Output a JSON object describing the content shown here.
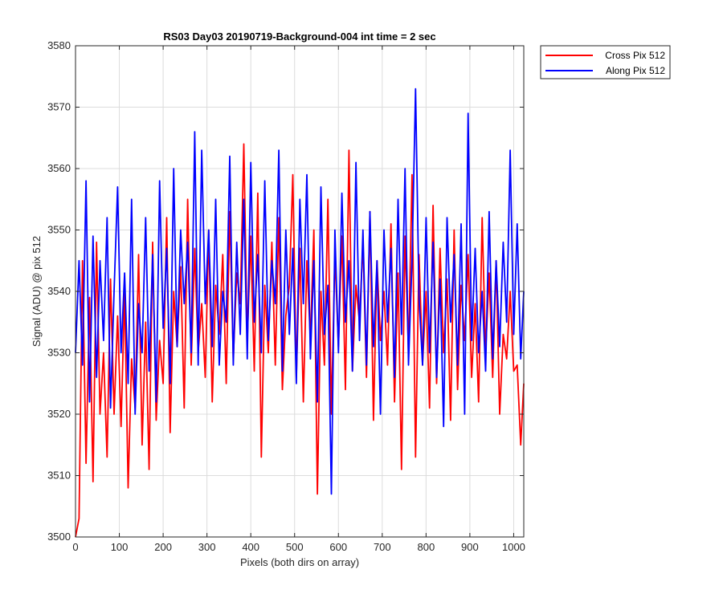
{
  "chart_data": {
    "type": "line",
    "title": "RS03 Day03 20190719-Background-004 int time = 2 sec",
    "xlabel": "Pixels (both dirs on array)",
    "ylabel": "Signal (ADU) @ pix 512",
    "xlim": [
      0,
      1023
    ],
    "ylim": [
      3500,
      3580
    ],
    "xticks": [
      0,
      100,
      200,
      300,
      400,
      500,
      600,
      700,
      800,
      900,
      1000
    ],
    "yticks": [
      3500,
      3510,
      3520,
      3530,
      3540,
      3550,
      3560,
      3570,
      3580
    ],
    "grid": true,
    "legend_position": "outside-top-right",
    "sampled_every": 8,
    "series": [
      {
        "name": "Cross Pix 512",
        "color": "#ff0000",
        "x": [
          0,
          8,
          16,
          24,
          32,
          40,
          48,
          56,
          64,
          72,
          80,
          88,
          96,
          104,
          112,
          120,
          128,
          136,
          144,
          152,
          160,
          168,
          176,
          184,
          192,
          200,
          208,
          216,
          224,
          232,
          240,
          248,
          256,
          264,
          272,
          280,
          288,
          296,
          304,
          312,
          320,
          328,
          336,
          344,
          352,
          360,
          368,
          376,
          384,
          392,
          400,
          408,
          416,
          424,
          432,
          440,
          448,
          456,
          464,
          472,
          480,
          488,
          496,
          504,
          512,
          520,
          528,
          536,
          544,
          552,
          560,
          568,
          576,
          584,
          592,
          600,
          608,
          616,
          624,
          632,
          640,
          648,
          656,
          664,
          672,
          680,
          688,
          696,
          704,
          712,
          720,
          728,
          736,
          744,
          752,
          760,
          768,
          776,
          784,
          792,
          800,
          808,
          816,
          824,
          832,
          840,
          848,
          856,
          864,
          872,
          880,
          888,
          896,
          904,
          912,
          920,
          928,
          936,
          944,
          952,
          960,
          968,
          976,
          984,
          992,
          1000,
          1008,
          1016,
          1023
        ],
        "values": [
          3500,
          3503,
          3545,
          3512,
          3539,
          3509,
          3548,
          3520,
          3530,
          3513,
          3542,
          3520,
          3536,
          3518,
          3540,
          3508,
          3529,
          3521,
          3546,
          3515,
          3535,
          3511,
          3548,
          3519,
          3532,
          3525,
          3552,
          3517,
          3540,
          3531,
          3544,
          3521,
          3555,
          3528,
          3547,
          3530,
          3538,
          3526,
          3550,
          3522,
          3541,
          3533,
          3546,
          3525,
          3553,
          3529,
          3543,
          3538,
          3564,
          3532,
          3549,
          3527,
          3556,
          3513,
          3541,
          3530,
          3548,
          3528,
          3552,
          3524,
          3536,
          3541,
          3559,
          3526,
          3547,
          3522,
          3545,
          3532,
          3550,
          3507,
          3540,
          3528,
          3555,
          3520,
          3546,
          3531,
          3549,
          3524,
          3563,
          3527,
          3541,
          3535,
          3548,
          3526,
          3553,
          3519,
          3545,
          3532,
          3540,
          3528,
          3551,
          3522,
          3543,
          3511,
          3549,
          3530,
          3559,
          3513,
          3546,
          3528,
          3540,
          3521,
          3554,
          3525,
          3547,
          3530,
          3542,
          3519,
          3550,
          3524,
          3541,
          3532,
          3546,
          3526,
          3538,
          3522,
          3552,
          3530,
          3543,
          3526,
          3545,
          3520,
          3533,
          3529,
          3540,
          3527,
          3528,
          3515,
          3525
        ]
      },
      {
        "name": "Along Pix 512",
        "color": "#0000ff",
        "x": [
          0,
          8,
          16,
          24,
          32,
          40,
          48,
          56,
          64,
          72,
          80,
          88,
          96,
          104,
          112,
          120,
          128,
          136,
          144,
          152,
          160,
          168,
          176,
          184,
          192,
          200,
          208,
          216,
          224,
          232,
          240,
          248,
          256,
          264,
          272,
          280,
          288,
          296,
          304,
          312,
          320,
          328,
          336,
          344,
          352,
          360,
          368,
          376,
          384,
          392,
          400,
          408,
          416,
          424,
          432,
          440,
          448,
          456,
          464,
          472,
          480,
          488,
          496,
          504,
          512,
          520,
          528,
          536,
          544,
          552,
          560,
          568,
          576,
          584,
          592,
          600,
          608,
          616,
          624,
          632,
          640,
          648,
          656,
          664,
          672,
          680,
          688,
          696,
          704,
          712,
          720,
          728,
          736,
          744,
          752,
          760,
          768,
          776,
          784,
          792,
          800,
          808,
          816,
          824,
          832,
          840,
          848,
          856,
          864,
          872,
          880,
          888,
          896,
          904,
          912,
          920,
          928,
          936,
          944,
          952,
          960,
          968,
          976,
          984,
          992,
          1000,
          1008,
          1016,
          1023
        ],
        "values": [
          3530,
          3545,
          3528,
          3558,
          3522,
          3549,
          3526,
          3545,
          3532,
          3552,
          3521,
          3540,
          3557,
          3530,
          3543,
          3525,
          3555,
          3520,
          3538,
          3530,
          3552,
          3527,
          3546,
          3522,
          3558,
          3534,
          3547,
          3525,
          3560,
          3531,
          3550,
          3538,
          3548,
          3530,
          3566,
          3528,
          3563,
          3538,
          3550,
          3531,
          3555,
          3528,
          3540,
          3535,
          3562,
          3528,
          3548,
          3533,
          3555,
          3529,
          3561,
          3535,
          3546,
          3530,
          3558,
          3532,
          3545,
          3538,
          3563,
          3527,
          3550,
          3533,
          3547,
          3525,
          3555,
          3538,
          3559,
          3529,
          3545,
          3522,
          3557,
          3533,
          3541,
          3507,
          3550,
          3530,
          3556,
          3535,
          3545,
          3527,
          3561,
          3532,
          3550,
          3528,
          3553,
          3531,
          3545,
          3520,
          3550,
          3535,
          3547,
          3526,
          3555,
          3533,
          3560,
          3528,
          3545,
          3573,
          3539,
          3528,
          3552,
          3530,
          3548,
          3526,
          3542,
          3518,
          3552,
          3535,
          3546,
          3528,
          3551,
          3520,
          3569,
          3532,
          3547,
          3530,
          3540,
          3527,
          3553,
          3529,
          3545,
          3531,
          3548,
          3535,
          3563,
          3533,
          3551,
          3529,
          3540
        ]
      }
    ]
  }
}
